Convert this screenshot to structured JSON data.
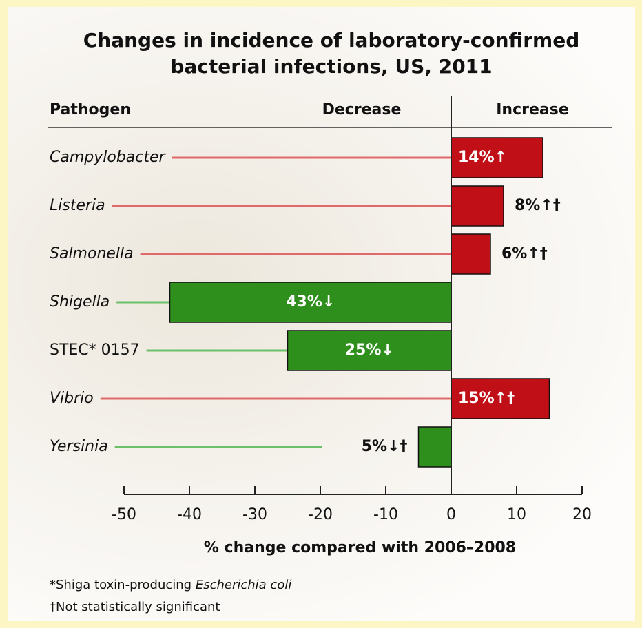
{
  "chart_data": {
    "type": "diverging-bar",
    "title": "Changes in incidence of laboratory-confirmed bacterial infections, US, 2011",
    "header": {
      "category": "Pathogen",
      "negative": "Decrease",
      "positive": "Increase"
    },
    "categories": [
      "Campylobacter",
      "Listeria",
      "Salmonella",
      "Shigella",
      "STEC* 0157",
      "Vibrio",
      "Yersinia"
    ],
    "category_italic": [
      true,
      true,
      true,
      true,
      false,
      true,
      true
    ],
    "values": [
      14,
      8,
      6,
      -43,
      -25,
      15,
      -5
    ],
    "value_labels": [
      "14%↑",
      "8%↑†",
      "6%↑†",
      "43%↓",
      "25%↓",
      "15%↑†",
      "5%↓†"
    ],
    "positive_color": "#c00f16",
    "negative_color": "#2f8f1c",
    "xlim": [
      -50,
      20
    ],
    "xticks": [
      -50,
      -40,
      -30,
      -20,
      -10,
      0,
      10,
      20
    ],
    "xlabel": "% change compared with 2006–2008",
    "notes": [
      [
        "*Shiga toxin-producing ",
        "Escherichia coli"
      ],
      [
        "†Not statistically significant"
      ]
    ]
  }
}
